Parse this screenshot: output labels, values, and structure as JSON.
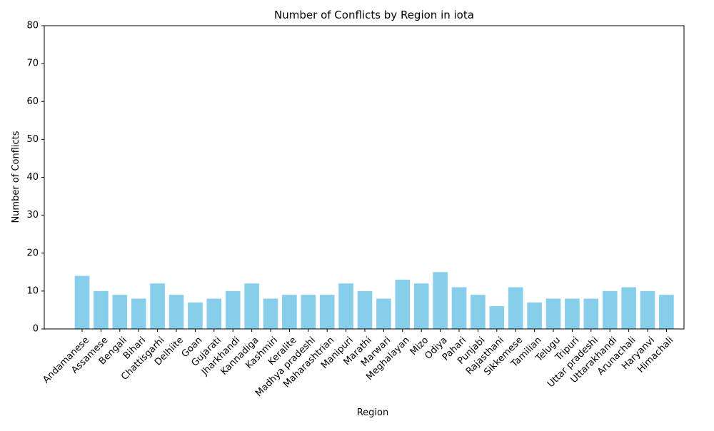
{
  "chart_data": {
    "type": "bar",
    "title": "Number of Conflicts by Region in iota",
    "xlabel": "Region",
    "ylabel": "Number of Conflicts",
    "ylim": [
      0,
      80
    ],
    "yticks": [
      0,
      10,
      20,
      30,
      40,
      50,
      60,
      70,
      80
    ],
    "grid": false,
    "legend": "none",
    "bar_color": "#87CEEB",
    "categories": [
      "Andamanese",
      "Assamese",
      "Bengali",
      "Bihari",
      "Chattisgarhi",
      "Delhiite",
      "Goan",
      "Gujarati",
      "Jharkhandi",
      "Kannadiga",
      "Kashmiri",
      "Keralite",
      "Madhya pradeshi",
      "Maharashtrian",
      "Manipuri",
      "Marathi",
      "Marwari",
      "Meghalayan",
      "Mizo",
      "Odiya",
      "Pahari",
      "Punjabi",
      "Rajasthani",
      "Sikkemese",
      "Tamilian",
      "Telugu",
      "Tripuri",
      "Uttar pradeshi",
      "Uttarakhandi",
      "Arunachali",
      "Haryanvi",
      "Himachali"
    ],
    "values": [
      14,
      10,
      9,
      8,
      12,
      9,
      7,
      8,
      10,
      12,
      8,
      9,
      9,
      9,
      12,
      10,
      8,
      13,
      12,
      15,
      11,
      9,
      6,
      11,
      7,
      8,
      8,
      8,
      10,
      11,
      10,
      9
    ]
  }
}
